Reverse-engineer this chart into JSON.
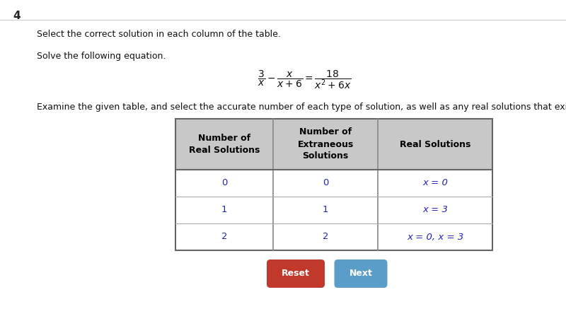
{
  "question_number": "4",
  "instruction1": "Select the correct solution in each column of the table.",
  "instruction2": "Solve the following equation.",
  "instruction3": "Examine the given table, and select the accurate number of each type of solution, as well as any real solutions that exist.",
  "table_headers": [
    "Number of\nReal Solutions",
    "Number of\nExtraneous\nSolutions",
    "Real Solutions"
  ],
  "table_rows": [
    [
      "0",
      "0",
      "x = 0"
    ],
    [
      "1",
      "1",
      "x = 3"
    ],
    [
      "2",
      "2",
      "x = 0, x = 3"
    ]
  ],
  "header_bg": "#c8c8c8",
  "table_border": "#888888",
  "cell_bg": "#ffffff",
  "row_text_color": "#2222bb",
  "header_text_color": "#000000",
  "button_reset_color": "#c0392b",
  "button_next_color": "#5b9dc9",
  "button_text_color": "#ffffff",
  "bg_color": "#f0f0f0",
  "page_bg": "#ffffff"
}
